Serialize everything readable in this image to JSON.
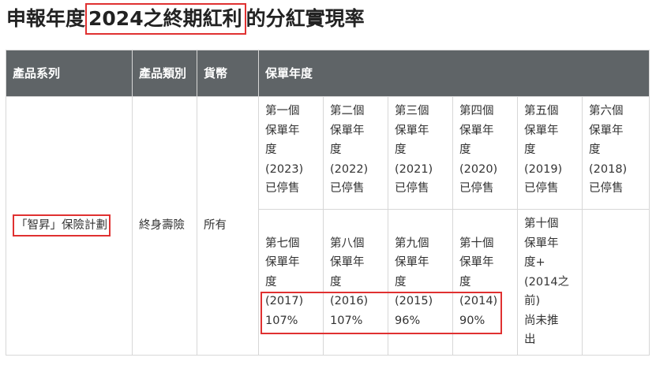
{
  "title": {
    "prefix": "申報年度",
    "highlight": "2024之終期紅利",
    "suffix": "的分紅實現率"
  },
  "table": {
    "headers": [
      "產品系列",
      "產品類別",
      "貨幣",
      "保單年度"
    ],
    "product_series": "「智昇」保險計劃",
    "product_type": "終身壽險",
    "currency": "所有",
    "row1": [
      [
        "第一個",
        "保單年",
        "度",
        "(2023)",
        "已停售"
      ],
      [
        "第二個",
        "保單年",
        "度",
        "(2022)",
        "已停售"
      ],
      [
        "第三個",
        "保單年",
        "度",
        "(2021)",
        "已停售"
      ],
      [
        "第四個",
        "保單年",
        "度",
        "(2020)",
        "已停售"
      ],
      [
        "第五個",
        "保單年",
        "度",
        "(2019)",
        "已停售"
      ],
      [
        "第六個",
        "保單年",
        "度",
        "(2018)",
        "已停售"
      ]
    ],
    "row2": [
      [
        "第七個",
        "保單年",
        "度",
        "(2017)",
        "107%"
      ],
      [
        "第八個",
        "保單年",
        "度",
        "(2016)",
        "107%"
      ],
      [
        "第九個",
        "保單年",
        "度",
        "(2015)",
        "96%"
      ],
      [
        "第十個",
        "保單年",
        "度",
        "(2014)",
        "90%"
      ],
      [
        "第十個",
        "保單年",
        "度+",
        "(2014之",
        "前)",
        "尚未推",
        "出"
      ]
    ]
  }
}
